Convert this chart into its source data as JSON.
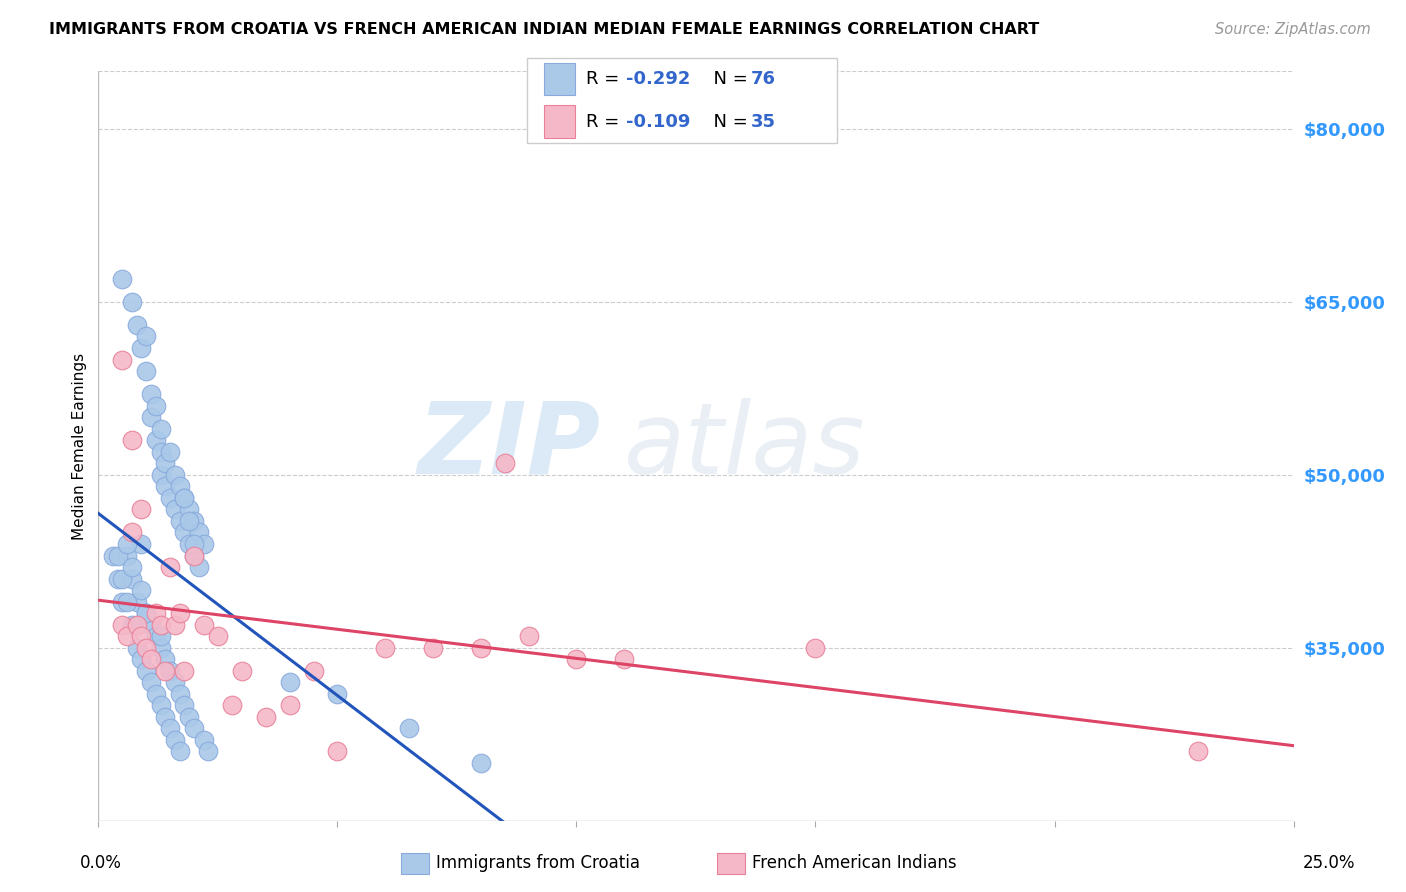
{
  "title": "IMMIGRANTS FROM CROATIA VS FRENCH AMERICAN INDIAN MEDIAN FEMALE EARNINGS CORRELATION CHART",
  "source": "Source: ZipAtlas.com",
  "ylabel": "Median Female Earnings",
  "xlim": [
    0.0,
    0.25
  ],
  "ylim": [
    20000,
    85000
  ],
  "yticks": [
    35000,
    50000,
    65000,
    80000
  ],
  "ytick_labels": [
    "$35,000",
    "$50,000",
    "$65,000",
    "$80,000"
  ],
  "grid_color": "#cccccc",
  "background_color": "#ffffff",
  "series1_color": "#aac8e8",
  "series1_edge_color": "#88aadd",
  "series2_color": "#f5b8c8",
  "series2_edge_color": "#e88098",
  "line1_color": "#2255bb",
  "line2_color": "#dd4466",
  "R1": -0.292,
  "N1": 76,
  "R2": -0.109,
  "N2": 35,
  "legend_label1": "Immigrants from Croatia",
  "legend_label2": "French American Indians",
  "watermark_zip": "ZIP",
  "watermark_atlas": "atlas",
  "blue_scatter_x": [
    0.005,
    0.007,
    0.008,
    0.009,
    0.01,
    0.01,
    0.011,
    0.011,
    0.012,
    0.012,
    0.013,
    0.013,
    0.013,
    0.014,
    0.014,
    0.015,
    0.015,
    0.016,
    0.016,
    0.017,
    0.017,
    0.018,
    0.018,
    0.019,
    0.019,
    0.02,
    0.02,
    0.021,
    0.021,
    0.022,
    0.003,
    0.004,
    0.005,
    0.006,
    0.007,
    0.008,
    0.009,
    0.01,
    0.011,
    0.012,
    0.013,
    0.014,
    0.015,
    0.016,
    0.017,
    0.018,
    0.019,
    0.02,
    0.022,
    0.023,
    0.004,
    0.005,
    0.006,
    0.007,
    0.008,
    0.009,
    0.01,
    0.011,
    0.012,
    0.013,
    0.014,
    0.015,
    0.016,
    0.017,
    0.018,
    0.019,
    0.02,
    0.006,
    0.007,
    0.009,
    0.01,
    0.013,
    0.04,
    0.05,
    0.065,
    0.08
  ],
  "blue_scatter_y": [
    67000,
    65000,
    63000,
    61000,
    59000,
    62000,
    57000,
    55000,
    53000,
    56000,
    52000,
    54000,
    50000,
    51000,
    49000,
    52000,
    48000,
    50000,
    47000,
    49000,
    46000,
    48000,
    45000,
    47000,
    44000,
    46000,
    43000,
    45000,
    42000,
    44000,
    43000,
    41000,
    39000,
    43000,
    41000,
    39000,
    44000,
    38000,
    37000,
    36000,
    35000,
    34000,
    33000,
    32000,
    31000,
    30000,
    29000,
    28000,
    27000,
    26000,
    43000,
    41000,
    39000,
    37000,
    35000,
    34000,
    33000,
    32000,
    31000,
    30000,
    29000,
    28000,
    27000,
    26000,
    48000,
    46000,
    44000,
    44000,
    42000,
    40000,
    38000,
    36000,
    32000,
    31000,
    28000,
    25000
  ],
  "pink_scatter_x": [
    0.005,
    0.006,
    0.007,
    0.008,
    0.009,
    0.01,
    0.011,
    0.012,
    0.013,
    0.014,
    0.015,
    0.016,
    0.017,
    0.018,
    0.02,
    0.022,
    0.025,
    0.028,
    0.03,
    0.035,
    0.04,
    0.045,
    0.05,
    0.06,
    0.07,
    0.08,
    0.085,
    0.09,
    0.1,
    0.11,
    0.005,
    0.007,
    0.009,
    0.15,
    0.23
  ],
  "pink_scatter_y": [
    37000,
    36000,
    45000,
    37000,
    36000,
    35000,
    34000,
    38000,
    37000,
    33000,
    42000,
    37000,
    38000,
    33000,
    43000,
    37000,
    36000,
    30000,
    33000,
    29000,
    30000,
    33000,
    26000,
    35000,
    35000,
    35000,
    51000,
    36000,
    34000,
    34000,
    60000,
    53000,
    47000,
    35000,
    26000
  ]
}
